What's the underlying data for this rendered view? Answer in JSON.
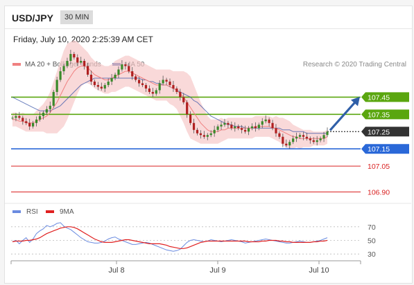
{
  "header": {
    "pair": "USD/JPY",
    "timeframe": "30 MIN"
  },
  "timestamp": "Friday, July 10, 2020 2:25:39 AM CET",
  "colors": {
    "ma20": "#f08080",
    "ma50": "#3a56a8",
    "bands": "#f7c9c9",
    "green": "#5aa60f",
    "blue": "#2a68d8",
    "red": "#d92020",
    "current": "#333333",
    "rsi": "#6a8be0",
    "rsi9": "#e02020"
  },
  "chart_data": [
    {
      "type": "line",
      "legend": [
        {
          "name": "MA 20 + Bollinger Bands",
          "color": "#f08080"
        },
        {
          "name": "MA 50",
          "color": "#3a56a8"
        }
      ],
      "credit": "Research © 2020 Trading Central",
      "x_ticks": [
        "Jul 8",
        "Jul 9",
        "Jul 10"
      ],
      "ylim": [
        106.85,
        107.62
      ],
      "levels": [
        {
          "value": 107.45,
          "label": "107.45",
          "kind": "resistance"
        },
        {
          "value": 107.35,
          "label": "107.35",
          "kind": "resistance"
        },
        {
          "value": 107.25,
          "label": "107.25",
          "kind": "current"
        },
        {
          "value": 107.15,
          "label": "107.15",
          "kind": "support"
        },
        {
          "value": 107.05,
          "label": "107.05",
          "kind": "target"
        },
        {
          "value": 106.9,
          "label": "106.90",
          "kind": "target"
        }
      ],
      "close": [
        107.33,
        107.34,
        107.33,
        107.31,
        107.3,
        107.28,
        107.3,
        107.32,
        107.34,
        107.36,
        107.38,
        107.4,
        107.48,
        107.55,
        107.6,
        107.63,
        107.66,
        107.7,
        107.68,
        107.65,
        107.66,
        107.63,
        107.58,
        107.54,
        107.52,
        107.51,
        107.5,
        107.52,
        107.54,
        107.56,
        107.58,
        107.61,
        107.64,
        107.63,
        107.6,
        107.57,
        107.55,
        107.53,
        107.52,
        107.5,
        107.48,
        107.47,
        107.49,
        107.53,
        107.55,
        107.54,
        107.52,
        107.5,
        107.48,
        107.45,
        107.42,
        107.35,
        107.3,
        107.26,
        107.24,
        107.23,
        107.22,
        107.23,
        107.24,
        107.26,
        107.28,
        107.29,
        107.3,
        107.29,
        107.27,
        107.28,
        107.27,
        107.26,
        107.25,
        107.27,
        107.28,
        107.27,
        107.29,
        107.31,
        107.32,
        107.3,
        107.27,
        107.24,
        107.22,
        107.18,
        107.17,
        107.19,
        107.21,
        107.22,
        107.23,
        107.22,
        107.21,
        107.2,
        107.19,
        107.2,
        107.21,
        107.23,
        107.25
      ],
      "ma20": [
        107.32,
        107.32,
        107.31,
        107.31,
        107.3,
        107.3,
        107.3,
        107.31,
        107.32,
        107.33,
        107.34,
        107.36,
        107.39,
        107.42,
        107.46,
        107.5,
        107.54,
        107.57,
        107.6,
        107.62,
        107.63,
        107.63,
        107.62,
        107.6,
        107.58,
        107.57,
        107.56,
        107.55,
        107.55,
        107.56,
        107.57,
        107.58,
        107.59,
        107.6,
        107.6,
        107.59,
        107.58,
        107.57,
        107.56,
        107.55,
        107.54,
        107.53,
        107.52,
        107.52,
        107.52,
        107.52,
        107.51,
        107.5,
        107.49,
        107.47,
        107.45,
        107.42,
        107.39,
        107.36,
        107.33,
        107.3,
        107.28,
        107.26,
        107.25,
        107.25,
        107.25,
        107.26,
        107.26,
        107.27,
        107.27,
        107.27,
        107.27,
        107.27,
        107.27,
        107.27,
        107.27,
        107.28,
        107.28,
        107.28,
        107.28,
        107.28,
        107.27,
        107.27,
        107.26,
        107.25,
        107.24,
        107.23,
        107.22,
        107.22,
        107.21,
        107.21,
        107.21,
        107.21,
        107.21,
        107.21,
        107.21,
        107.21,
        107.22
      ],
      "ma50": [
        107.45,
        107.44,
        107.43,
        107.42,
        107.41,
        107.4,
        107.39,
        107.38,
        107.37,
        107.37,
        107.37,
        107.37,
        107.38,
        107.39,
        107.4,
        107.42,
        107.44,
        107.46,
        107.48,
        107.5,
        107.52,
        107.53,
        107.54,
        107.55,
        107.56,
        107.56,
        107.56,
        107.56,
        107.56,
        107.56,
        107.56,
        107.56,
        107.56,
        107.56,
        107.56,
        107.56,
        107.56,
        107.56,
        107.55,
        107.55,
        107.54,
        107.54,
        107.53,
        107.53,
        107.52,
        107.52,
        107.51,
        107.5,
        107.49,
        107.48,
        107.47,
        107.46,
        107.45,
        107.43,
        107.42,
        107.4,
        107.38,
        107.36,
        107.34,
        107.33,
        107.32,
        107.31,
        107.3,
        107.29,
        107.29,
        107.28,
        107.28,
        107.28,
        107.27,
        107.27,
        107.27,
        107.27,
        107.27,
        107.27,
        107.27,
        107.27,
        107.27,
        107.27,
        107.27,
        107.26,
        107.26,
        107.26,
        107.25,
        107.25,
        107.25,
        107.25,
        107.24,
        107.24,
        107.24,
        107.24,
        107.24,
        107.24,
        107.24
      ],
      "band_width": [
        0.04,
        0.04,
        0.04,
        0.05,
        0.05,
        0.05,
        0.05,
        0.06,
        0.07,
        0.08,
        0.1,
        0.12,
        0.15,
        0.18,
        0.2,
        0.22,
        0.22,
        0.2,
        0.18,
        0.15,
        0.12,
        0.1,
        0.09,
        0.08,
        0.08,
        0.08,
        0.08,
        0.08,
        0.08,
        0.08,
        0.09,
        0.09,
        0.09,
        0.09,
        0.09,
        0.09,
        0.09,
        0.09,
        0.09,
        0.09,
        0.09,
        0.09,
        0.09,
        0.09,
        0.09,
        0.09,
        0.1,
        0.1,
        0.11,
        0.13,
        0.15,
        0.17,
        0.18,
        0.16,
        0.14,
        0.12,
        0.1,
        0.08,
        0.07,
        0.07,
        0.07,
        0.07,
        0.06,
        0.06,
        0.06,
        0.06,
        0.06,
        0.06,
        0.06,
        0.06,
        0.06,
        0.06,
        0.06,
        0.06,
        0.06,
        0.06,
        0.06,
        0.07,
        0.07,
        0.08,
        0.08,
        0.08,
        0.07,
        0.06,
        0.06,
        0.05,
        0.05,
        0.05,
        0.04,
        0.04,
        0.04,
        0.04,
        0.04
      ]
    },
    {
      "type": "line",
      "legend": [
        {
          "name": "RSI",
          "color": "#6a8be0"
        },
        {
          "name": "9MA",
          "color": "#e02020"
        }
      ],
      "y_ticks": [
        "70",
        "50",
        "30"
      ],
      "ylim": [
        20,
        80
      ],
      "rsi": [
        48,
        50,
        45,
        50,
        54,
        47,
        52,
        60,
        64,
        67,
        72,
        70,
        72,
        75,
        76,
        71,
        68,
        66,
        62,
        58,
        54,
        51,
        48,
        47,
        46,
        46,
        47,
        49,
        52,
        54,
        55,
        52,
        50,
        48,
        46,
        44,
        44,
        45,
        46,
        47,
        46,
        44,
        42,
        40,
        38,
        36,
        35,
        34,
        35,
        37,
        42,
        47,
        50,
        51,
        50,
        49,
        48,
        49,
        51,
        50,
        49,
        48,
        49,
        50,
        51,
        50,
        49,
        48,
        46,
        47,
        48,
        49,
        50,
        51,
        52,
        51,
        50,
        49,
        48,
        47,
        46,
        46,
        47,
        48,
        49,
        48,
        47,
        47,
        48,
        49,
        50,
        52,
        54
      ],
      "rsi9": [
        48,
        49,
        49,
        49,
        50,
        50,
        51,
        52,
        54,
        57,
        60,
        62,
        64,
        66,
        68,
        69,
        70,
        70,
        69,
        67,
        64,
        61,
        58,
        55,
        52,
        50,
        48,
        47,
        47,
        47,
        48,
        49,
        50,
        51,
        51,
        50,
        49,
        48,
        47,
        46,
        45,
        45,
        45,
        45,
        44,
        43,
        41,
        40,
        39,
        38,
        38,
        39,
        41,
        43,
        45,
        47,
        48,
        49,
        49,
        49,
        49,
        49,
        49,
        49,
        49,
        49,
        49,
        49,
        49,
        48,
        48,
        48,
        48,
        49,
        49,
        50,
        50,
        50,
        49,
        49,
        48,
        48,
        47,
        47,
        47,
        47,
        47,
        47,
        48,
        48,
        49,
        49,
        50
      ]
    }
  ]
}
